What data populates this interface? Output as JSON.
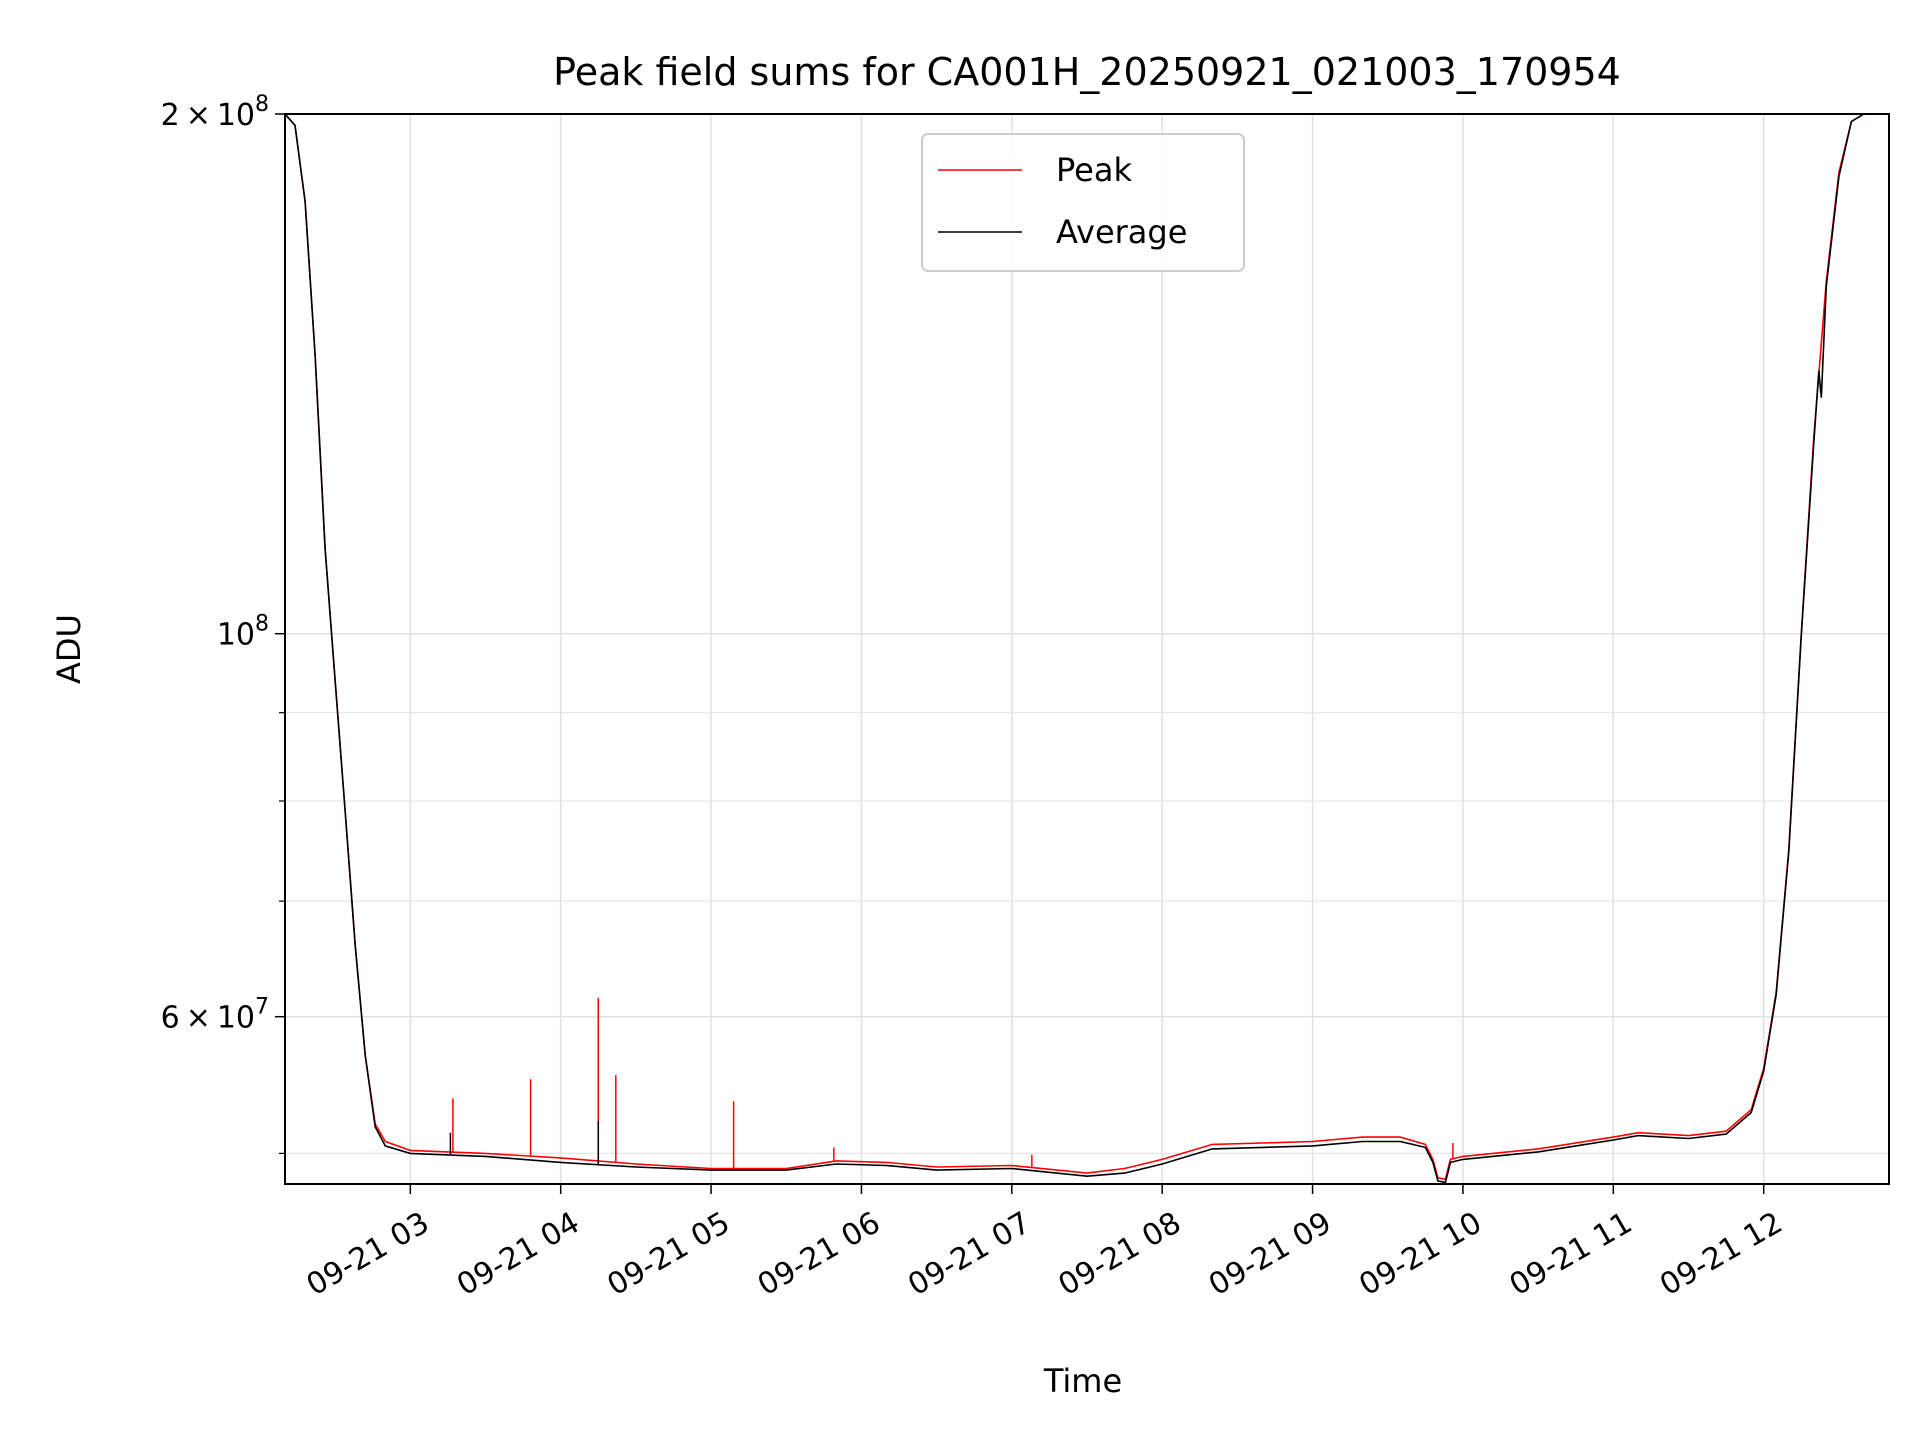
{
  "chart_data": {
    "type": "line",
    "title": "Peak field sums for CA001H_20250921_021003_170954",
    "xlabel": "Time",
    "ylabel": "ADU",
    "yscale": "log",
    "xlim": [
      "2025-09-21 02:10",
      "2025-09-21 12:50"
    ],
    "ylim": [
      48000000,
      200000000
    ],
    "x_tick_labels": [
      "09-21 03",
      "09-21 04",
      "09-21 05",
      "09-21 06",
      "09-21 07",
      "09-21 08",
      "09-21 09",
      "09-21 10",
      "09-21 11",
      "09-21 12"
    ],
    "x_ticks": [
      "2025-09-21 03:00",
      "2025-09-21 04:00",
      "2025-09-21 05:00",
      "2025-09-21 06:00",
      "2025-09-21 07:00",
      "2025-09-21 08:00",
      "2025-09-21 09:00",
      "2025-09-21 10:00",
      "2025-09-21 11:00",
      "2025-09-21 12:00"
    ],
    "y_ticks_major": [
      {
        "value": 200000000,
        "mantissa": "2",
        "sep": "×",
        "base": "10",
        "exp": "8"
      },
      {
        "value": 100000000,
        "mantissa": "",
        "sep": "",
        "base": "10",
        "exp": "8"
      },
      {
        "value": 60000000,
        "mantissa": "6",
        "sep": "×",
        "base": "10",
        "exp": "7"
      }
    ],
    "y_ticks_minor": [
      50000000,
      70000000,
      80000000,
      90000000
    ],
    "grid": true,
    "legend": {
      "placement": "upper center"
    },
    "series": [
      {
        "name": "Peak",
        "color": "#ff0000",
        "points": [
          [
            "2025-09-21 02:10",
            200000000
          ],
          [
            "2025-09-21 02:14",
            197000000
          ],
          [
            "2025-09-21 02:18",
            178000000
          ],
          [
            "2025-09-21 02:22",
            145000000
          ],
          [
            "2025-09-21 02:26",
            112000000
          ],
          [
            "2025-09-21 02:30",
            94000000
          ],
          [
            "2025-09-21 02:34",
            79000000
          ],
          [
            "2025-09-21 02:38",
            66000000
          ],
          [
            "2025-09-21 02:42",
            57000000
          ],
          [
            "2025-09-21 02:46",
            52000000
          ],
          [
            "2025-09-21 02:50",
            50800000
          ],
          [
            "2025-09-21 03:00",
            50200000
          ],
          [
            "2025-09-21 03:30",
            50000000
          ],
          [
            "2025-09-21 04:00",
            49700000
          ],
          [
            "2025-09-21 04:30",
            49300000
          ],
          [
            "2025-09-21 05:00",
            49000000
          ],
          [
            "2025-09-21 05:30",
            49000000
          ],
          [
            "2025-09-21 05:50",
            49500000
          ],
          [
            "2025-09-21 06:10",
            49400000
          ],
          [
            "2025-09-21 06:30",
            49100000
          ],
          [
            "2025-09-21 07:00",
            49200000
          ],
          [
            "2025-09-21 07:30",
            48700000
          ],
          [
            "2025-09-21 07:45",
            49000000
          ],
          [
            "2025-09-21 08:00",
            49600000
          ],
          [
            "2025-09-21 08:20",
            50600000
          ],
          [
            "2025-09-21 08:40",
            50700000
          ],
          [
            "2025-09-21 09:00",
            50800000
          ],
          [
            "2025-09-21 09:20",
            51100000
          ],
          [
            "2025-09-21 09:35",
            51100000
          ],
          [
            "2025-09-21 09:45",
            50600000
          ],
          [
            "2025-09-21 09:48",
            49600000
          ],
          [
            "2025-09-21 09:50",
            48400000
          ],
          [
            "2025-09-21 09:53",
            48300000
          ],
          [
            "2025-09-21 09:55",
            49600000
          ],
          [
            "2025-09-21 10:00",
            49800000
          ],
          [
            "2025-09-21 10:30",
            50300000
          ],
          [
            "2025-09-21 11:00",
            51100000
          ],
          [
            "2025-09-21 11:10",
            51400000
          ],
          [
            "2025-09-21 11:30",
            51200000
          ],
          [
            "2025-09-21 11:45",
            51500000
          ],
          [
            "2025-09-21 11:55",
            53000000
          ],
          [
            "2025-09-21 12:00",
            56000000
          ],
          [
            "2025-09-21 12:05",
            62000000
          ],
          [
            "2025-09-21 12:10",
            75000000
          ],
          [
            "2025-09-21 12:15",
            100000000
          ],
          [
            "2025-09-21 12:20",
            130000000
          ],
          [
            "2025-09-21 12:25",
            160000000
          ],
          [
            "2025-09-21 12:30",
            185000000
          ],
          [
            "2025-09-21 12:35",
            198000000
          ],
          [
            "2025-09-21 12:40",
            200000000
          ]
        ],
        "spikes": [
          [
            "2025-09-21 03:17",
            53800000
          ],
          [
            "2025-09-21 03:48",
            55200000
          ],
          [
            "2025-09-21 04:15",
            61500000
          ],
          [
            "2025-09-21 04:22",
            55500000
          ],
          [
            "2025-09-21 05:09",
            53600000
          ],
          [
            "2025-09-21 05:49",
            50400000
          ],
          [
            "2025-09-21 07:08",
            49900000
          ],
          [
            "2025-09-21 09:56",
            50700000
          ]
        ]
      },
      {
        "name": "Average",
        "color": "#000000",
        "points": [
          [
            "2025-09-21 02:10",
            200000000
          ],
          [
            "2025-09-21 02:14",
            197000000
          ],
          [
            "2025-09-21 02:18",
            178000000
          ],
          [
            "2025-09-21 02:22",
            145000000
          ],
          [
            "2025-09-21 02:26",
            112000000
          ],
          [
            "2025-09-21 02:30",
            94000000
          ],
          [
            "2025-09-21 02:34",
            79000000
          ],
          [
            "2025-09-21 02:38",
            66000000
          ],
          [
            "2025-09-21 02:42",
            57000000
          ],
          [
            "2025-09-21 02:46",
            51800000
          ],
          [
            "2025-09-21 02:50",
            50500000
          ],
          [
            "2025-09-21 03:00",
            50000000
          ],
          [
            "2025-09-21 03:30",
            49800000
          ],
          [
            "2025-09-21 04:00",
            49400000
          ],
          [
            "2025-09-21 04:30",
            49100000
          ],
          [
            "2025-09-21 05:00",
            48900000
          ],
          [
            "2025-09-21 05:30",
            48900000
          ],
          [
            "2025-09-21 05:50",
            49300000
          ],
          [
            "2025-09-21 06:10",
            49200000
          ],
          [
            "2025-09-21 06:30",
            48900000
          ],
          [
            "2025-09-21 07:00",
            49000000
          ],
          [
            "2025-09-21 07:30",
            48500000
          ],
          [
            "2025-09-21 07:45",
            48700000
          ],
          [
            "2025-09-21 08:00",
            49300000
          ],
          [
            "2025-09-21 08:20",
            50300000
          ],
          [
            "2025-09-21 08:40",
            50400000
          ],
          [
            "2025-09-21 09:00",
            50500000
          ],
          [
            "2025-09-21 09:20",
            50800000
          ],
          [
            "2025-09-21 09:35",
            50800000
          ],
          [
            "2025-09-21 09:45",
            50400000
          ],
          [
            "2025-09-21 09:48",
            49400000
          ],
          [
            "2025-09-21 09:50",
            48200000
          ],
          [
            "2025-09-21 09:53",
            48100000
          ],
          [
            "2025-09-21 09:55",
            49400000
          ],
          [
            "2025-09-21 10:00",
            49600000
          ],
          [
            "2025-09-21 10:30",
            50100000
          ],
          [
            "2025-09-21 11:00",
            50900000
          ],
          [
            "2025-09-21 11:10",
            51200000
          ],
          [
            "2025-09-21 11:30",
            51000000
          ],
          [
            "2025-09-21 11:45",
            51300000
          ],
          [
            "2025-09-21 11:55",
            52800000
          ],
          [
            "2025-09-21 12:00",
            55800000
          ],
          [
            "2025-09-21 12:05",
            61800000
          ],
          [
            "2025-09-21 12:10",
            74800000
          ],
          [
            "2025-09-21 12:15",
            99800000
          ],
          [
            "2025-09-21 12:20",
            129000000
          ],
          [
            "2025-09-21 12:22",
            142000000
          ],
          [
            "2025-09-21 12:23",
            137000000
          ],
          [
            "2025-09-21 12:25",
            159000000
          ],
          [
            "2025-09-21 12:30",
            184000000
          ],
          [
            "2025-09-21 12:35",
            198000000
          ],
          [
            "2025-09-21 12:40",
            200000000
          ]
        ],
        "spikes": [
          [
            "2025-09-21 04:15",
            52200000
          ],
          [
            "2025-09-21 03:16",
            51400000
          ]
        ]
      }
    ]
  }
}
